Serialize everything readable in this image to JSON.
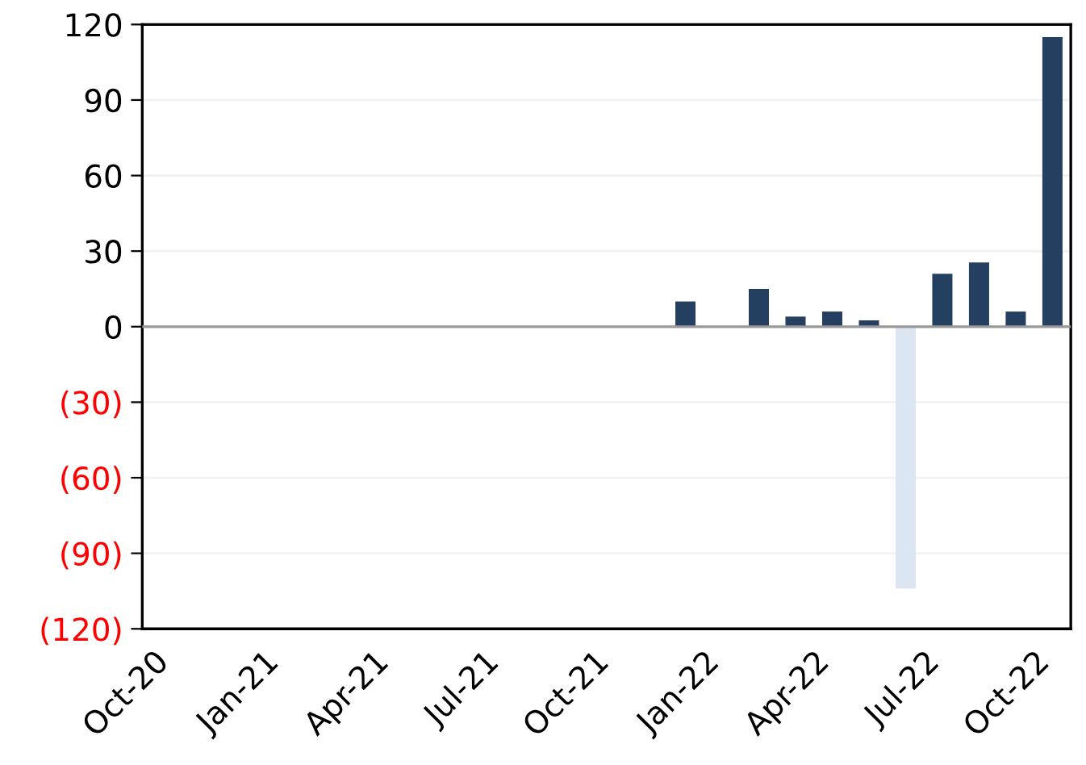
{
  "chart_data": {
    "type": "bar",
    "categories": [
      "Oct-20",
      null,
      null,
      "Jan-21",
      null,
      null,
      "Apr-21",
      null,
      null,
      "Jul-21",
      null,
      null,
      "Oct-21",
      null,
      null,
      "Jan-22",
      null,
      null,
      "Apr-22",
      null,
      null,
      "Jul-22",
      null,
      null,
      "Oct-22"
    ],
    "values": [
      null,
      null,
      null,
      null,
      null,
      null,
      null,
      null,
      null,
      null,
      null,
      null,
      null,
      null,
      10,
      null,
      15,
      4,
      6,
      2.5,
      -104,
      21,
      25.5,
      6,
      115
    ],
    "colors": [
      "#243f60",
      "#243f60",
      "#243f60",
      "#243f60",
      "#243f60",
      "#243f60",
      "#243f60",
      "#243f60",
      "#243f60",
      "#243f60",
      "#243f60",
      "#243f60",
      "#243f60",
      "#243f60",
      "#243f60",
      "#243f60",
      "#243f60",
      "#243f60",
      "#243f60",
      "#243f60",
      "#dce6f2",
      "#243f60",
      "#243f60",
      "#243f60",
      "#243f60"
    ],
    "ylim": [
      -120,
      120
    ],
    "yticks": [
      {
        "value": -120,
        "label": "(120)"
      },
      {
        "value": -90,
        "label": "(90)"
      },
      {
        "value": -60,
        "label": "(60)"
      },
      {
        "value": -30,
        "label": "(30)"
      },
      0,
      30,
      60,
      90,
      120
    ],
    "grid": "y"
  }
}
